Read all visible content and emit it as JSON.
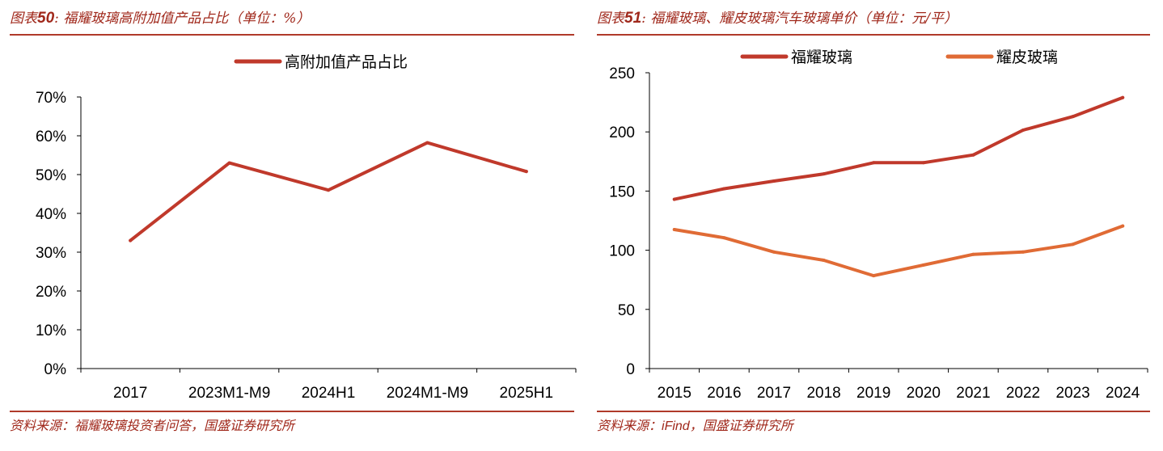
{
  "colors": {
    "accent": "#a0281b",
    "fuyao_line": "#c0392b",
    "yaopi_line": "#e06b35",
    "rule": "#b03a2a"
  },
  "left": {
    "caption_prefix": "图表",
    "caption_num": "50",
    "caption_rest": ": 福耀玻璃高附加值产品占比（单位：%）",
    "source": "资料来源：福耀玻璃投资者问答，国盛证券研究所"
  },
  "right": {
    "caption_prefix": "图表",
    "caption_num": "51",
    "caption_rest": ": 福耀玻璃、耀皮玻璃汽车玻璃单价（单位：元/平）",
    "source_prefix": "资料来源：",
    "source_ifind": "iFind",
    "source_rest": "，国盛证券研究所"
  },
  "chart_data": [
    {
      "type": "line",
      "categories": [
        "2017",
        "2023M1-M9",
        "2024H1",
        "2024M1-M9",
        "2025H1"
      ],
      "series": [
        {
          "name": "高附加值产品占比",
          "values": [
            33,
            53,
            46,
            58.2,
            50.8
          ],
          "color": "#c0392b"
        }
      ],
      "ylim": [
        0,
        70
      ],
      "yticks": [
        0,
        10,
        20,
        30,
        40,
        50,
        60,
        70
      ],
      "ytick_labels": [
        "0%",
        "10%",
        "20%",
        "30%",
        "40%",
        "50%",
        "60%",
        "70%"
      ],
      "legend_position": "top-center",
      "grid": false
    },
    {
      "type": "line",
      "categories": [
        "2015",
        "2016",
        "2017",
        "2018",
        "2019",
        "2020",
        "2021",
        "2022",
        "2023",
        "2024"
      ],
      "series": [
        {
          "name": "福耀玻璃",
          "values": [
            143,
            152,
            158.5,
            164.5,
            174,
            174,
            180.5,
            201.5,
            213,
            229
          ],
          "color": "#c0392b"
        },
        {
          "name": "耀皮玻璃",
          "values": [
            117.5,
            110.5,
            98.5,
            91.5,
            78.5,
            87.5,
            96.5,
            98.5,
            105,
            120.5
          ],
          "color": "#e06b35"
        }
      ],
      "ylim": [
        0,
        250
      ],
      "yticks": [
        0,
        50,
        100,
        150,
        200,
        250
      ],
      "ytick_labels": [
        "0",
        "50",
        "100",
        "150",
        "200",
        "250"
      ],
      "legend_position": "top",
      "grid": false
    }
  ]
}
